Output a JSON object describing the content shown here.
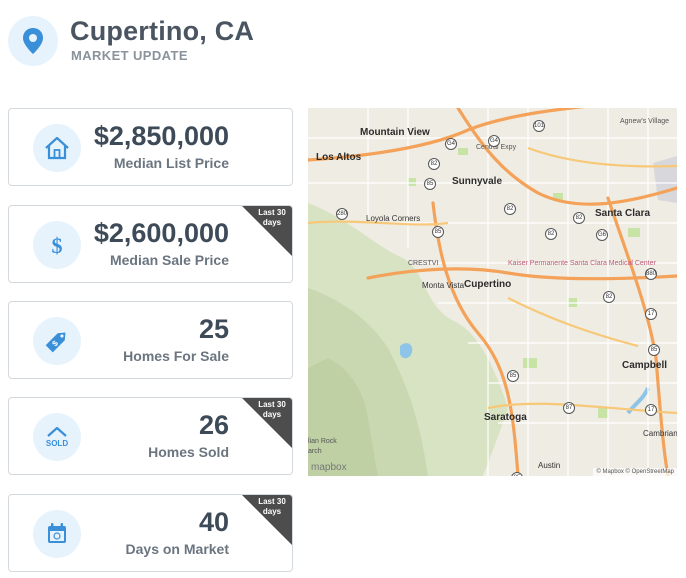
{
  "header": {
    "city": "Cupertino, CA",
    "subtitle": "MARKET UPDATE",
    "icon": "location-pin-icon"
  },
  "colors": {
    "accent": "#3a8fd9",
    "icon_bg": "#e6f3fd",
    "ribbon": "#4d4d4d"
  },
  "stats": [
    {
      "value": "$2,850,000",
      "label": "Median List Price",
      "icon": "house-icon",
      "ribbon": ""
    },
    {
      "value": "$2,600,000",
      "label": "Median Sale Price",
      "icon": "dollar-icon",
      "ribbon": "Last 30 days"
    },
    {
      "value": "25",
      "label": "Homes For Sale",
      "icon": "price-tag-icon",
      "ribbon": ""
    },
    {
      "value": "26",
      "label": "Homes Sold",
      "icon": "sold-house-icon",
      "ribbon": "Last 30 days"
    },
    {
      "value": "40",
      "label": "Days on Market",
      "icon": "calendar-icon",
      "ribbon": "Last 30 days"
    }
  ],
  "map": {
    "places": {
      "mountain_view": "Mountain View",
      "los_altos": "Los Altos",
      "sunnyvale": "Sunnyvale",
      "santa_clara": "Santa Clara",
      "cupertino": "Cupertino",
      "monta_vista": "Monta Vista",
      "loyola_corners": "Loyola Corners",
      "campbell": "Campbell",
      "saratoga": "Saratoga",
      "cambrian": "Cambrian",
      "austin": "Austin",
      "agnews": "Agnew's Village",
      "crestview": "CRESTVI",
      "alian_rock": "lian Rock",
      "arch": "arch",
      "central_expy": "Central Expy",
      "hospital": "Kaiser Permanente Santa Clara Medical Center"
    },
    "shields": [
      "101",
      "82",
      "85",
      "82",
      "280",
      "85",
      "82",
      "82",
      "82",
      "85",
      "87",
      "17",
      "85",
      "17",
      "85",
      "880",
      "G4",
      "G4",
      "G6"
    ],
    "logo": "mapbox",
    "attribution": "© Mapbox © OpenStreetMap"
  }
}
